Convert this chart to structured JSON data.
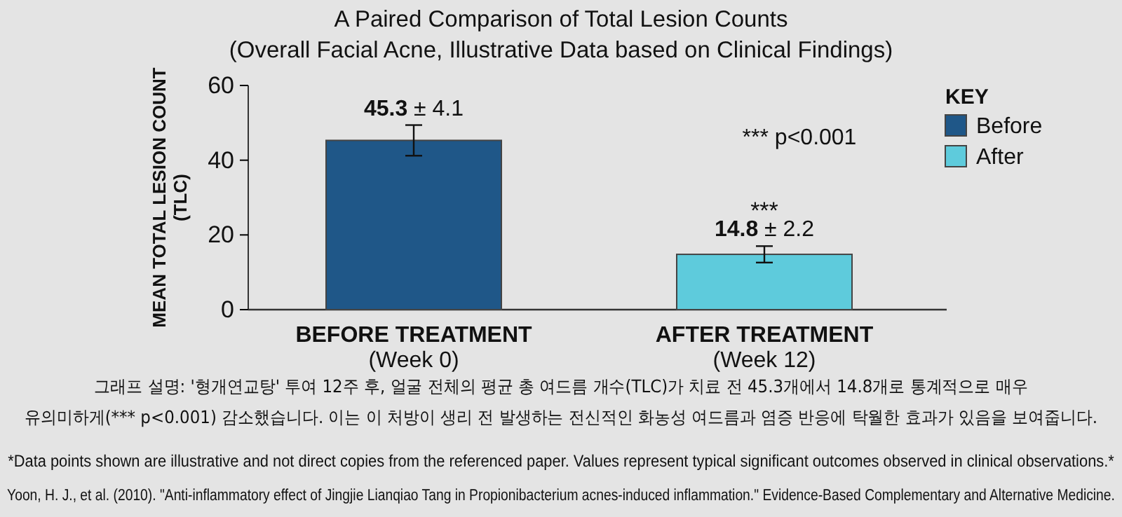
{
  "chart_data": {
    "type": "bar",
    "title": "A Paired Comparison of Total Lesion Counts",
    "subtitle": "(Overall Facial Acne, Illustrative Data based on Clinical Findings)",
    "ylabel": "MEAN TOTAL LESION COUNT\n(TLC)",
    "legend_title": "KEY",
    "categories": [
      "BEFORE TREATMENT\n(Week 0)",
      "AFTER TREATMENT\n(Week 12)"
    ],
    "series": [
      {
        "name": "Before",
        "color": "#1f5788",
        "values": [
          45.3,
          null
        ],
        "errors": [
          4.1,
          null
        ],
        "value_labels": [
          "45.3 ± 4.1",
          null
        ]
      },
      {
        "name": "After",
        "color": "#5ecbdc",
        "values": [
          null,
          14.8
        ],
        "errors": [
          null,
          2.2
        ],
        "value_labels": [
          null,
          "14.8 ± 2.2"
        ]
      }
    ],
    "ylim": [
      0,
      60
    ],
    "yticks": [
      0,
      20,
      40,
      60
    ],
    "grid": false,
    "legend": "top right",
    "annotations": [
      "*** p<0.001",
      "***",
      "그래프 설명: '형개연교탕' 투여 12주 후, 얼굴 전체의 평균 총 여드름 개수(TLC)가 치료 전 45.3개에서 14.8개로 통계적으로 매우\n유의미하게(*** p<0.001) 감소했습니다. 이는 이 처방이 생리 전 발생하는 전신적인 화농성 여드름과 염증 반응에 탁월한 효과가 있음을 보여줍니다.",
      "*Data points shown are illustrative and not direct copies from the referenced paper. Values represent typical significant outcomes observed in clinical observations.*",
      "Yoon, H. J., et al. (2010). \"Anti-inflammatory effect of Jingjie Lianqiao Tang in Propionibacterium acnes-induced inflammation.\" Evidence-Based Complementary and Alternative Medicine."
    ]
  }
}
